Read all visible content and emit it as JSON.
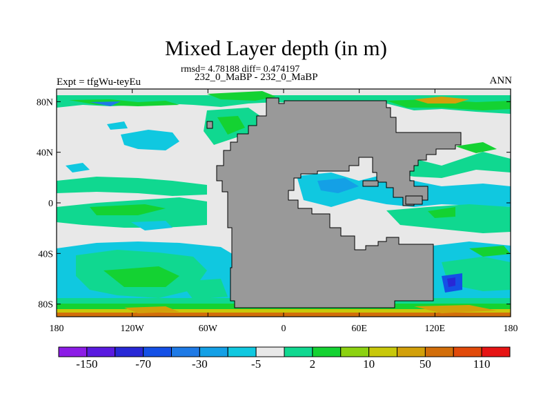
{
  "title": "Mixed Layer depth (in m)",
  "stats": "rmsd= 4.78188 diff= 0.474197",
  "runs": "232_0_MaBP - 232_0_MaBP",
  "experiment": "Expt = tfgWu-teyEu",
  "season": "ANN",
  "map": {
    "lon_range": [
      -180,
      180
    ],
    "lat_range": [
      -90,
      90
    ],
    "x_ticks": [
      {
        "value": -180,
        "label": "180"
      },
      {
        "value": -120,
        "label": "120W"
      },
      {
        "value": -60,
        "label": "60W"
      },
      {
        "value": 0,
        "label": "0"
      },
      {
        "value": 60,
        "label": "60E"
      },
      {
        "value": 120,
        "label": "120E"
      },
      {
        "value": 180,
        "label": "180"
      }
    ],
    "y_ticks": [
      {
        "value": 80,
        "label": "80N"
      },
      {
        "value": 40,
        "label": "40N"
      },
      {
        "value": 0,
        "label": "0"
      },
      {
        "value": -40,
        "label": "40S"
      },
      {
        "value": -80,
        "label": "80S"
      }
    ],
    "land_color": "#999999",
    "ocean_background_color": "#e8e8e8"
  },
  "colorbar": {
    "colors": [
      "#8c1ce6",
      "#5a1ae0",
      "#2828d6",
      "#1450e6",
      "#1e7ae6",
      "#14a0e6",
      "#10c8e0",
      "#e8e8e8",
      "#10d890",
      "#14d232",
      "#8cd210",
      "#c8c80a",
      "#d2a00a",
      "#d26e0a",
      "#e14a0a",
      "#e61414"
    ],
    "labels": [
      {
        "boundary": 1,
        "text": "-150"
      },
      {
        "boundary": 3,
        "text": "-70"
      },
      {
        "boundary": 5,
        "text": "-30"
      },
      {
        "boundary": 7,
        "text": "-5"
      },
      {
        "boundary": 9,
        "text": "2"
      },
      {
        "boundary": 11,
        "text": "10"
      },
      {
        "boundary": 13,
        "text": "50"
      },
      {
        "boundary": 15,
        "text": "110"
      }
    ]
  }
}
